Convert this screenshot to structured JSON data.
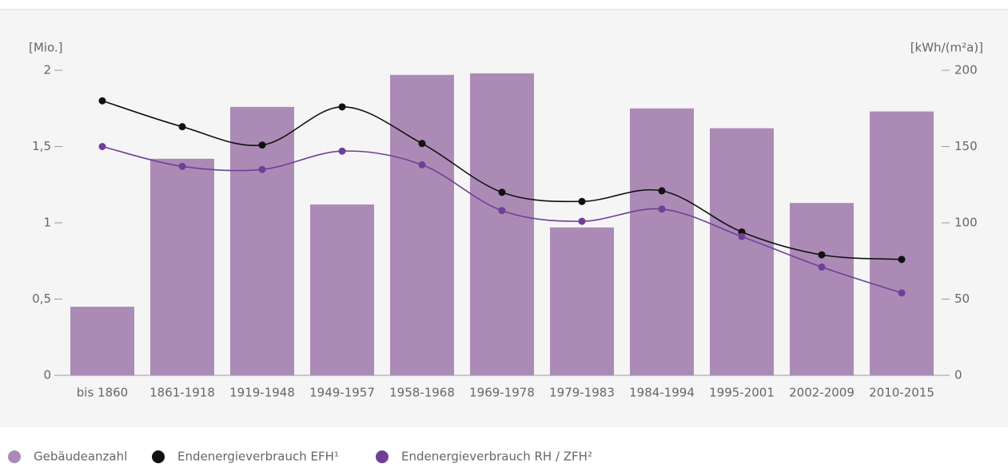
{
  "chart_data": {
    "type": "bar_line",
    "y_label": "[Mio.]",
    "y2_label": "[kWh/(m²a)]",
    "categories": [
      "bis 1860",
      "1861-1918",
      "1919-1948",
      "1949-1957",
      "1958-1968",
      "1969-1978",
      "1979-1983",
      "1984-1994",
      "1995-2001",
      "2002-2009",
      "2010-2015"
    ],
    "series": [
      {
        "name": "Gebäudeanzahl",
        "color": "#ab8bb5",
        "type": "bar",
        "values": [
          0.45,
          1.42,
          1.76,
          1.12,
          1.97,
          1.98,
          0.97,
          1.75,
          1.62,
          1.13,
          1.73
        ]
      },
      {
        "name": "Endenergieverbrauch EFH¹",
        "color": "#111111",
        "type": "line",
        "axis": "y2",
        "values": [
          180,
          163,
          151,
          176,
          152,
          120,
          114,
          121,
          94,
          79,
          76
        ]
      },
      {
        "name": "Endenergieverbrauch RH / ZFH²",
        "color": "#6f3f98",
        "type": "line",
        "axis": "y2",
        "values": [
          150,
          137,
          135,
          147,
          138,
          108,
          101,
          109,
          91,
          71,
          54
        ]
      }
    ],
    "ylim": [
      0,
      2
    ],
    "yticks": [
      0,
      {
        "value": 0.5,
        "label": "0,5"
      },
      1,
      {
        "value": 1.5,
        "label": "1,5"
      },
      2
    ],
    "y2lim": [
      0,
      200
    ],
    "y2ticks": [
      0,
      50,
      100,
      150,
      200
    ]
  }
}
